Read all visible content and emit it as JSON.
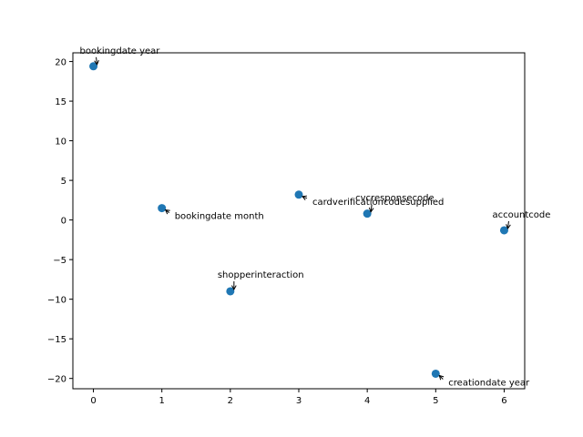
{
  "chart_data": {
    "type": "scatter",
    "title": "",
    "xlabel": "",
    "ylabel": "",
    "xlim": [
      -0.3,
      6.3
    ],
    "ylim": [
      -21.3,
      21.1
    ],
    "grid": false,
    "legend": "none",
    "marker_color": "#1f77b4",
    "x_ticks": [
      0,
      1,
      2,
      3,
      4,
      5,
      6
    ],
    "x_tick_labels": [
      "0",
      "1",
      "2",
      "3",
      "4",
      "5",
      "6"
    ],
    "y_ticks": [
      20,
      15,
      10,
      5,
      0,
      -5,
      -10,
      -15,
      -20
    ],
    "y_tick_labels": [
      "20",
      "15",
      "10",
      "5",
      "0",
      "−5",
      "−10",
      "−15",
      "−20"
    ],
    "points": [
      {
        "x": 0,
        "y": 19.4,
        "label": "bookingdate year"
      },
      {
        "x": 1,
        "y": 1.5,
        "label": "bookingdate month"
      },
      {
        "x": 2,
        "y": -9.0,
        "label": "shopperinteraction"
      },
      {
        "x": 3,
        "y": 3.2,
        "label": "cardverificationcodesupplied"
      },
      {
        "x": 4,
        "y": 0.8,
        "label": "cvcresponsecode"
      },
      {
        "x": 5,
        "y": -19.4,
        "label": "creationdate year"
      },
      {
        "x": 6,
        "y": -1.3,
        "label": "accountcode"
      }
    ]
  }
}
